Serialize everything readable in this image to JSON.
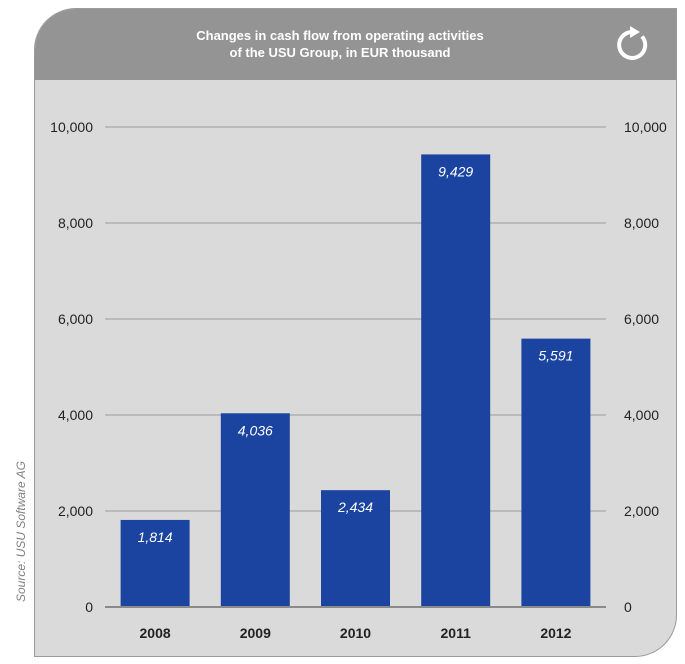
{
  "source_note": "Source: USU Software AG",
  "reload_icon": "refresh-icon",
  "colors": {
    "bar": "#1a44a0",
    "header": "#949494",
    "panel": "#dadada",
    "grid": "#9a9a9a"
  },
  "chart_data": {
    "type": "bar",
    "title": "Changes in cash flow from operating activities of the USU Group, in EUR thousand",
    "title_lines": [
      "Changes in cash flow from operating activities",
      "of the USU Group, in EUR thousand"
    ],
    "categories": [
      "2008",
      "2009",
      "2010",
      "2011",
      "2012"
    ],
    "values": [
      1814,
      4036,
      2434,
      9429,
      5591
    ],
    "value_labels": [
      "1,814",
      "4,036",
      "2,434",
      "9,429",
      "5,591"
    ],
    "y_ticks": [
      0,
      2000,
      4000,
      6000,
      8000,
      10000
    ],
    "y_tick_labels": [
      "0",
      "2,000",
      "4,000",
      "6,000",
      "8,000",
      "10,000"
    ],
    "ylim": [
      0,
      10000
    ],
    "grid": true,
    "axis_labels_both_sides": true
  }
}
